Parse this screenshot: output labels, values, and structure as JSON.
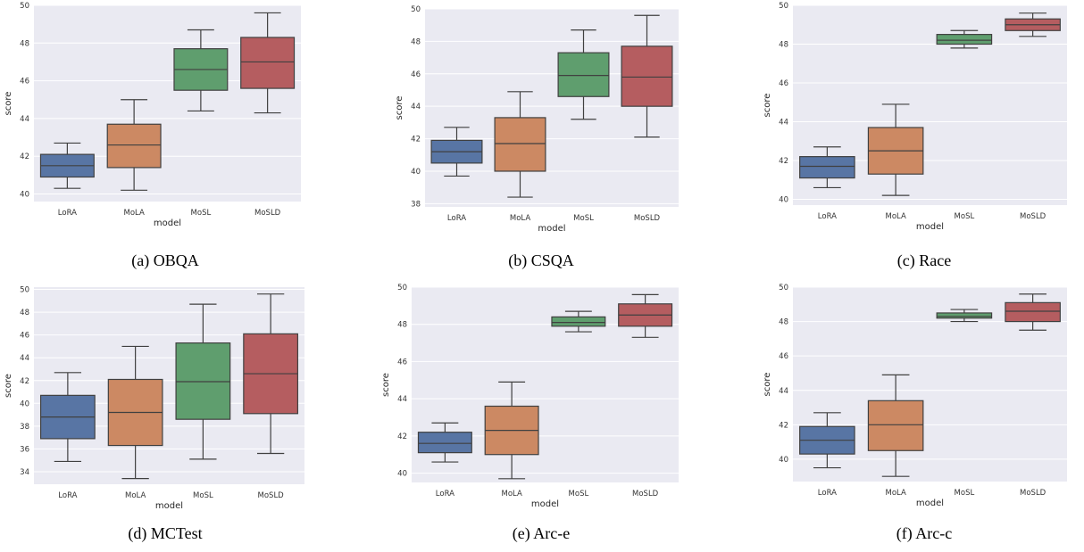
{
  "figure": {
    "palette": {
      "plot_bg": "#eaeaf2",
      "grid": "#ffffff",
      "line": "#404040",
      "LoRA": "#5875a4",
      "MoLA": "#cc8963",
      "MoSL": "#5f9e6e",
      "MoSLD": "#b55d60"
    }
  },
  "chart_data": [
    {
      "type": "box",
      "caption": "(a) OBQA",
      "xlabel": "model",
      "ylabel": "score",
      "categories": [
        "LoRA",
        "MoLA",
        "MoSL",
        "MoSLD"
      ],
      "ylim": [
        39.6,
        50.0
      ],
      "yticks": [
        40,
        42,
        44,
        46,
        48,
        50
      ],
      "grid": true,
      "boxes": [
        {
          "name": "LoRA",
          "whisker_low": 40.3,
          "q1": 40.9,
          "median": 41.5,
          "q3": 42.1,
          "whisker_high": 42.7
        },
        {
          "name": "MoLA",
          "whisker_low": 40.2,
          "q1": 41.4,
          "median": 42.6,
          "q3": 43.7,
          "whisker_high": 45.0
        },
        {
          "name": "MoSL",
          "whisker_low": 44.4,
          "q1": 45.5,
          "median": 46.6,
          "q3": 47.7,
          "whisker_high": 48.7
        },
        {
          "name": "MoSLD",
          "whisker_low": 44.3,
          "q1": 45.6,
          "median": 47.0,
          "q3": 48.3,
          "whisker_high": 49.6
        }
      ]
    },
    {
      "type": "box",
      "caption": "(b) CSQA",
      "xlabel": "model",
      "ylabel": "score",
      "categories": [
        "LoRA",
        "MoLA",
        "MoSL",
        "MoSLD"
      ],
      "ylim": [
        37.8,
        50.0
      ],
      "yticks": [
        38,
        40,
        42,
        44,
        46,
        48,
        50
      ],
      "grid": true,
      "boxes": [
        {
          "name": "LoRA",
          "whisker_low": 39.7,
          "q1": 40.5,
          "median": 41.2,
          "q3": 41.9,
          "whisker_high": 42.7
        },
        {
          "name": "MoLA",
          "whisker_low": 38.4,
          "q1": 40.0,
          "median": 41.7,
          "q3": 43.3,
          "whisker_high": 44.9
        },
        {
          "name": "MoSL",
          "whisker_low": 43.2,
          "q1": 44.6,
          "median": 45.9,
          "q3": 47.3,
          "whisker_high": 48.7
        },
        {
          "name": "MoSLD",
          "whisker_low": 42.1,
          "q1": 44.0,
          "median": 45.8,
          "q3": 47.7,
          "whisker_high": 49.6
        }
      ]
    },
    {
      "type": "box",
      "caption": "(c) Race",
      "xlabel": "model",
      "ylabel": "score",
      "categories": [
        "LoRA",
        "MoLA",
        "MoSL",
        "MoSLD"
      ],
      "ylim": [
        39.7,
        50.0
      ],
      "yticks": [
        40,
        42,
        44,
        46,
        48,
        50
      ],
      "grid": true,
      "boxes": [
        {
          "name": "LoRA",
          "whisker_low": 40.6,
          "q1": 41.1,
          "median": 41.7,
          "q3": 42.2,
          "whisker_high": 42.7
        },
        {
          "name": "MoLA",
          "whisker_low": 40.2,
          "q1": 41.3,
          "median": 42.5,
          "q3": 43.7,
          "whisker_high": 44.9
        },
        {
          "name": "MoSL",
          "whisker_low": 47.8,
          "q1": 48.0,
          "median": 48.2,
          "q3": 48.5,
          "whisker_high": 48.7
        },
        {
          "name": "MoSLD",
          "whisker_low": 48.4,
          "q1": 48.7,
          "median": 49.0,
          "q3": 49.3,
          "whisker_high": 49.6
        }
      ]
    },
    {
      "type": "box",
      "caption": "(d) MCTest",
      "xlabel": "model",
      "ylabel": "score",
      "categories": [
        "LoRA",
        "MoLA",
        "MoSL",
        "MoSLD"
      ],
      "ylim": [
        32.9,
        50.2
      ],
      "yticks": [
        34,
        36,
        38,
        40,
        42,
        44,
        46,
        48,
        50
      ],
      "grid": true,
      "boxes": [
        {
          "name": "LoRA",
          "whisker_low": 34.9,
          "q1": 36.9,
          "median": 38.8,
          "q3": 40.7,
          "whisker_high": 42.7
        },
        {
          "name": "MoLA",
          "whisker_low": 33.4,
          "q1": 36.3,
          "median": 39.2,
          "q3": 42.1,
          "whisker_high": 45.0
        },
        {
          "name": "MoSL",
          "whisker_low": 35.1,
          "q1": 38.6,
          "median": 41.9,
          "q3": 45.3,
          "whisker_high": 48.7
        },
        {
          "name": "MoSLD",
          "whisker_low": 35.6,
          "q1": 39.1,
          "median": 42.6,
          "q3": 46.1,
          "whisker_high": 49.6
        }
      ]
    },
    {
      "type": "box",
      "caption": "(e) Arc-e",
      "xlabel": "model",
      "ylabel": "score",
      "categories": [
        "LoRA",
        "MoLA",
        "MoSL",
        "MoSLD"
      ],
      "ylim": [
        39.5,
        50.0
      ],
      "yticks": [
        40,
        42,
        44,
        46,
        48,
        50
      ],
      "grid": true,
      "boxes": [
        {
          "name": "LoRA",
          "whisker_low": 40.6,
          "q1": 41.1,
          "median": 41.6,
          "q3": 42.2,
          "whisker_high": 42.7
        },
        {
          "name": "MoLA",
          "whisker_low": 39.7,
          "q1": 41.0,
          "median": 42.3,
          "q3": 43.6,
          "whisker_high": 44.9
        },
        {
          "name": "MoSL",
          "whisker_low": 47.6,
          "q1": 47.9,
          "median": 48.1,
          "q3": 48.4,
          "whisker_high": 48.7
        },
        {
          "name": "MoSLD",
          "whisker_low": 47.3,
          "q1": 47.9,
          "median": 48.5,
          "q3": 49.1,
          "whisker_high": 49.6
        }
      ]
    },
    {
      "type": "box",
      "caption": "(f) Arc-c",
      "xlabel": "model",
      "ylabel": "score",
      "categories": [
        "LoRA",
        "MoLA",
        "MoSL",
        "MoSLD"
      ],
      "ylim": [
        38.7,
        50.0
      ],
      "yticks": [
        40,
        42,
        44,
        46,
        48,
        50
      ],
      "grid": true,
      "boxes": [
        {
          "name": "LoRA",
          "whisker_low": 39.5,
          "q1": 40.3,
          "median": 41.1,
          "q3": 41.9,
          "whisker_high": 42.7
        },
        {
          "name": "MoLA",
          "whisker_low": 39.0,
          "q1": 40.5,
          "median": 42.0,
          "q3": 43.4,
          "whisker_high": 44.9
        },
        {
          "name": "MoSL",
          "whisker_low": 48.0,
          "q1": 48.2,
          "median": 48.3,
          "q3": 48.5,
          "whisker_high": 48.7
        },
        {
          "name": "MoSLD",
          "whisker_low": 47.5,
          "q1": 48.0,
          "median": 48.6,
          "q3": 49.1,
          "whisker_high": 49.6
        }
      ]
    }
  ]
}
